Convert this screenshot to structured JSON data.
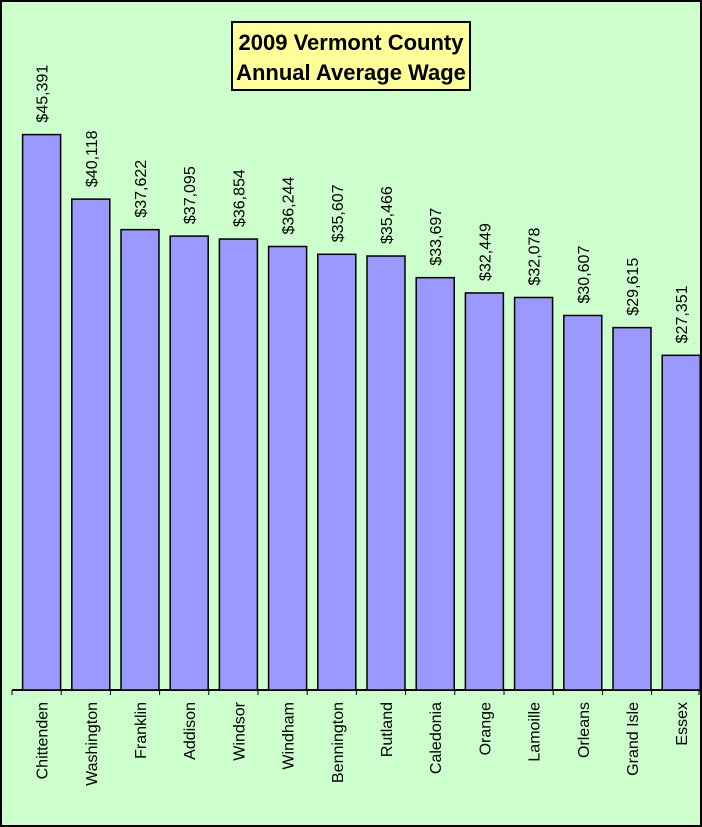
{
  "chart_data": {
    "type": "bar",
    "title": [
      "2009 Vermont County",
      "Annual Average Wage"
    ],
    "categories": [
      "Chittenden",
      "Washington",
      "Franklin",
      "Addison",
      "Windsor",
      "Windham",
      "Bennington",
      "Rutland",
      "Caledonia",
      "Orange",
      "Lamoille",
      "Orleans",
      "Grand Isle",
      "Essex"
    ],
    "values": [
      45391,
      40118,
      37622,
      37095,
      36854,
      36244,
      35607,
      35466,
      33697,
      32449,
      32078,
      30607,
      29615,
      27351
    ],
    "value_labels": [
      "$45,391",
      "$40,118",
      "$37,622",
      "$37,095",
      "$36,854",
      "$36,244",
      "$35,607",
      "$35,466",
      "$33,697",
      "$32,449",
      "$32,078",
      "$30,607",
      "$29,615",
      "$27,351"
    ],
    "color": "#9999ff",
    "ylim": [
      0,
      55000
    ]
  }
}
